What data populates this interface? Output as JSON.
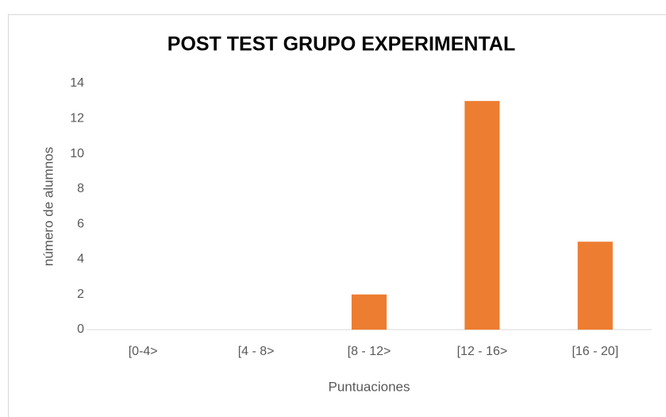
{
  "chart_data": {
    "type": "bar",
    "title": "POST TEST GRUPO EXPERIMENTAL",
    "x_label": "Puntuaciones",
    "y_label": "número de alumnos",
    "categories": [
      "[0-4>",
      "[4 - 8>",
      "[8 - 12>",
      "[12 - 16>",
      "[16 - 20]"
    ],
    "values": [
      0,
      0,
      2,
      13,
      5
    ],
    "color": "#ed7d31",
    "ylim": [
      0,
      14
    ],
    "yticks": [
      0,
      2,
      4,
      6,
      8,
      10,
      12,
      14
    ],
    "grid": false
  }
}
